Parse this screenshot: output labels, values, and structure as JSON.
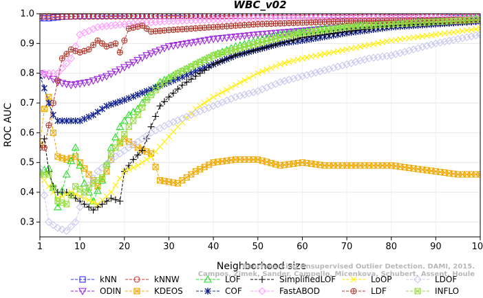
{
  "chart_data": {
    "type": "line",
    "title": "WBC_v02",
    "xlabel": "Neighborhood size",
    "ylabel": "ROC AUC",
    "xlim": [
      1,
      100
    ],
    "ylim": [
      0.25,
      1.0
    ],
    "xticks": [
      1,
      10,
      20,
      30,
      40,
      50,
      60,
      70,
      80,
      90,
      100
    ],
    "yticks": [
      0.3,
      0.4,
      0.5,
      0.6,
      0.7,
      0.8,
      0.9,
      1.0
    ],
    "xtick_labels": [
      "1",
      "10",
      "20",
      "30",
      "40",
      "50",
      "60",
      "70",
      "80",
      "90",
      "100"
    ],
    "ytick_labels": [
      "0.3",
      "0.4",
      "0.5",
      "0.6",
      "0.7",
      "0.8",
      "0.9",
      "1.0"
    ],
    "watermark_lines": [
      "Benchmarking Unsupervised Outlier Detection. DAMI, 2015.",
      "Campos, Zimek, Sander, Campello, Micenkova, Schubert, Assent, Houle"
    ],
    "legend_columns": 6,
    "series": [
      {
        "name": "kNN",
        "color": "#2a2aff",
        "marker": "square",
        "knots": [
          [
            1,
            0.985
          ],
          [
            3,
            0.985
          ],
          [
            6,
            0.99
          ],
          [
            10,
            0.993
          ],
          [
            100,
            0.995
          ]
        ]
      },
      {
        "name": "ODIN",
        "color": "#9a22dd",
        "marker": "tri-down",
        "knots": [
          [
            1,
            0.8
          ],
          [
            3,
            0.79
          ],
          [
            5,
            0.77
          ],
          [
            8,
            0.76
          ],
          [
            12,
            0.77
          ],
          [
            16,
            0.79
          ],
          [
            20,
            0.82
          ],
          [
            25,
            0.86
          ],
          [
            30,
            0.89
          ],
          [
            40,
            0.915
          ],
          [
            50,
            0.93
          ],
          [
            70,
            0.955
          ],
          [
            100,
            0.975
          ]
        ]
      },
      {
        "name": "kNNW",
        "color": "#d03030",
        "marker": "circle",
        "knots": [
          [
            1,
            0.99
          ],
          [
            5,
            0.99
          ],
          [
            100,
            0.997
          ]
        ]
      },
      {
        "name": "KDEOS",
        "color": "#f0a800",
        "marker": "square-x",
        "knots": [
          [
            1,
            0.56
          ],
          [
            2,
            0.68
          ],
          [
            3,
            0.72
          ],
          [
            4,
            0.6
          ],
          [
            5,
            0.52
          ],
          [
            7,
            0.51
          ],
          [
            9,
            0.52
          ],
          [
            12,
            0.46
          ],
          [
            14,
            0.42
          ],
          [
            16,
            0.47
          ],
          [
            18,
            0.55
          ],
          [
            20,
            0.58
          ],
          [
            23,
            0.55
          ],
          [
            26,
            0.53
          ],
          [
            28,
            0.44
          ],
          [
            32,
            0.43
          ],
          [
            36,
            0.47
          ],
          [
            40,
            0.5
          ],
          [
            45,
            0.51
          ],
          [
            50,
            0.51
          ],
          [
            55,
            0.49
          ],
          [
            60,
            0.5
          ],
          [
            65,
            0.49
          ],
          [
            70,
            0.49
          ],
          [
            75,
            0.49
          ],
          [
            80,
            0.49
          ],
          [
            85,
            0.48
          ],
          [
            90,
            0.47
          ],
          [
            95,
            0.46
          ],
          [
            100,
            0.46
          ]
        ]
      },
      {
        "name": "LOF",
        "color": "#22dd22",
        "marker": "tri-up",
        "knots": [
          [
            1,
            0.47
          ],
          [
            3,
            0.48
          ],
          [
            5,
            0.35
          ],
          [
            7,
            0.46
          ],
          [
            9,
            0.55
          ],
          [
            11,
            0.43
          ],
          [
            13,
            0.37
          ],
          [
            15,
            0.44
          ],
          [
            17,
            0.55
          ],
          [
            19,
            0.62
          ],
          [
            21,
            0.66
          ],
          [
            23,
            0.68
          ],
          [
            25,
            0.72
          ],
          [
            28,
            0.77
          ],
          [
            32,
            0.8
          ],
          [
            36,
            0.83
          ],
          [
            40,
            0.86
          ],
          [
            45,
            0.89
          ],
          [
            50,
            0.91
          ],
          [
            55,
            0.93
          ],
          [
            60,
            0.94
          ],
          [
            70,
            0.96
          ],
          [
            80,
            0.97
          ],
          [
            100,
            0.985
          ]
        ]
      },
      {
        "name": "COF",
        "color": "#102090",
        "marker": "asterisk",
        "knots": [
          [
            1,
            0.79
          ],
          [
            2,
            0.75
          ],
          [
            3,
            0.7
          ],
          [
            4,
            0.66
          ],
          [
            5,
            0.64
          ],
          [
            7,
            0.64
          ],
          [
            10,
            0.64
          ],
          [
            13,
            0.66
          ],
          [
            16,
            0.69
          ],
          [
            20,
            0.71
          ],
          [
            25,
            0.74
          ],
          [
            30,
            0.77
          ],
          [
            35,
            0.8
          ],
          [
            40,
            0.83
          ],
          [
            45,
            0.86
          ],
          [
            50,
            0.88
          ],
          [
            55,
            0.9
          ],
          [
            60,
            0.91
          ],
          [
            70,
            0.935
          ],
          [
            80,
            0.955
          ],
          [
            100,
            0.975
          ]
        ]
      },
      {
        "name": "SimplifiedLOF",
        "color": "#000000",
        "marker": "plus",
        "knots": [
          [
            1,
            0.55
          ],
          [
            2,
            0.58
          ],
          [
            3,
            0.47
          ],
          [
            4,
            0.42
          ],
          [
            5,
            0.4
          ],
          [
            7,
            0.4
          ],
          [
            9,
            0.38
          ],
          [
            11,
            0.36
          ],
          [
            13,
            0.34
          ],
          [
            15,
            0.36
          ],
          [
            17,
            0.38
          ],
          [
            19,
            0.37
          ],
          [
            20,
            0.47
          ],
          [
            22,
            0.51
          ],
          [
            24,
            0.54
          ],
          [
            26,
            0.62
          ],
          [
            28,
            0.69
          ],
          [
            30,
            0.72
          ],
          [
            33,
            0.76
          ],
          [
            36,
            0.79
          ],
          [
            40,
            0.83
          ],
          [
            45,
            0.86
          ],
          [
            50,
            0.88
          ],
          [
            55,
            0.9
          ],
          [
            60,
            0.92
          ],
          [
            70,
            0.94
          ],
          [
            80,
            0.96
          ],
          [
            100,
            0.975
          ]
        ]
      },
      {
        "name": "FastABOD",
        "color": "#ff99ff",
        "marker": "diamond",
        "knots": [
          [
            1,
            0.8
          ],
          [
            5,
            0.8
          ],
          [
            8,
            0.85
          ],
          [
            10,
            0.93
          ],
          [
            14,
            0.955
          ],
          [
            20,
            0.965
          ],
          [
            30,
            0.975
          ],
          [
            50,
            0.985
          ],
          [
            100,
            0.99
          ]
        ]
      },
      {
        "name": "LoOP",
        "color": "#ffee00",
        "marker": "x",
        "knots": [
          [
            1,
            0.46
          ],
          [
            3,
            0.42
          ],
          [
            5,
            0.38
          ],
          [
            8,
            0.4
          ],
          [
            11,
            0.38
          ],
          [
            14,
            0.36
          ],
          [
            17,
            0.4
          ],
          [
            20,
            0.47
          ],
          [
            23,
            0.49
          ],
          [
            26,
            0.52
          ],
          [
            29,
            0.57
          ],
          [
            32,
            0.62
          ],
          [
            36,
            0.68
          ],
          [
            40,
            0.72
          ],
          [
            45,
            0.76
          ],
          [
            50,
            0.8
          ],
          [
            55,
            0.83
          ],
          [
            60,
            0.85
          ],
          [
            70,
            0.88
          ],
          [
            80,
            0.91
          ],
          [
            90,
            0.93
          ],
          [
            100,
            0.95
          ]
        ]
      },
      {
        "name": "LDF",
        "color": "#b03a2e",
        "marker": "circle-plus",
        "knots": [
          [
            1,
            0.55
          ],
          [
            2,
            0.55
          ],
          [
            4,
            0.7
          ],
          [
            6,
            0.85
          ],
          [
            8,
            0.88
          ],
          [
            10,
            0.87
          ],
          [
            12,
            0.88
          ],
          [
            14,
            0.91
          ],
          [
            16,
            0.89
          ],
          [
            18,
            0.9
          ],
          [
            19,
            0.87
          ],
          [
            21,
            0.95
          ],
          [
            24,
            0.96
          ],
          [
            26,
            0.94
          ],
          [
            30,
            0.945
          ],
          [
            40,
            0.955
          ],
          [
            50,
            0.965
          ],
          [
            70,
            0.975
          ],
          [
            100,
            0.98
          ]
        ]
      },
      {
        "name": "LDOF",
        "color": "#c8c8ee",
        "marker": "diamond",
        "knots": [
          [
            1,
            0.48
          ],
          [
            3,
            0.3
          ],
          [
            5,
            0.28
          ],
          [
            7,
            0.27
          ],
          [
            9,
            0.3
          ],
          [
            11,
            0.4
          ],
          [
            14,
            0.47
          ],
          [
            18,
            0.52
          ],
          [
            22,
            0.56
          ],
          [
            26,
            0.6
          ],
          [
            30,
            0.63
          ],
          [
            35,
            0.66
          ],
          [
            40,
            0.69
          ],
          [
            45,
            0.72
          ],
          [
            50,
            0.74
          ],
          [
            55,
            0.77
          ],
          [
            60,
            0.79
          ],
          [
            65,
            0.81
          ],
          [
            70,
            0.83
          ],
          [
            75,
            0.85
          ],
          [
            80,
            0.86
          ],
          [
            85,
            0.88
          ],
          [
            90,
            0.9
          ],
          [
            95,
            0.915
          ],
          [
            100,
            0.93
          ]
        ]
      },
      {
        "name": "INFLO",
        "color": "#99dd44",
        "marker": "square-x",
        "knots": [
          [
            1,
            0.46
          ],
          [
            3,
            0.46
          ],
          [
            5,
            0.37
          ],
          [
            7,
            0.36
          ],
          [
            9,
            0.42
          ],
          [
            11,
            0.4
          ],
          [
            13,
            0.43
          ],
          [
            15,
            0.45
          ],
          [
            17,
            0.53
          ],
          [
            19,
            0.57
          ],
          [
            21,
            0.62
          ],
          [
            23,
            0.66
          ],
          [
            25,
            0.71
          ],
          [
            28,
            0.76
          ],
          [
            32,
            0.8
          ],
          [
            36,
            0.83
          ],
          [
            40,
            0.86
          ],
          [
            45,
            0.88
          ],
          [
            50,
            0.9
          ],
          [
            55,
            0.92
          ],
          [
            60,
            0.935
          ],
          [
            70,
            0.955
          ],
          [
            80,
            0.965
          ],
          [
            100,
            0.98
          ]
        ]
      }
    ]
  }
}
